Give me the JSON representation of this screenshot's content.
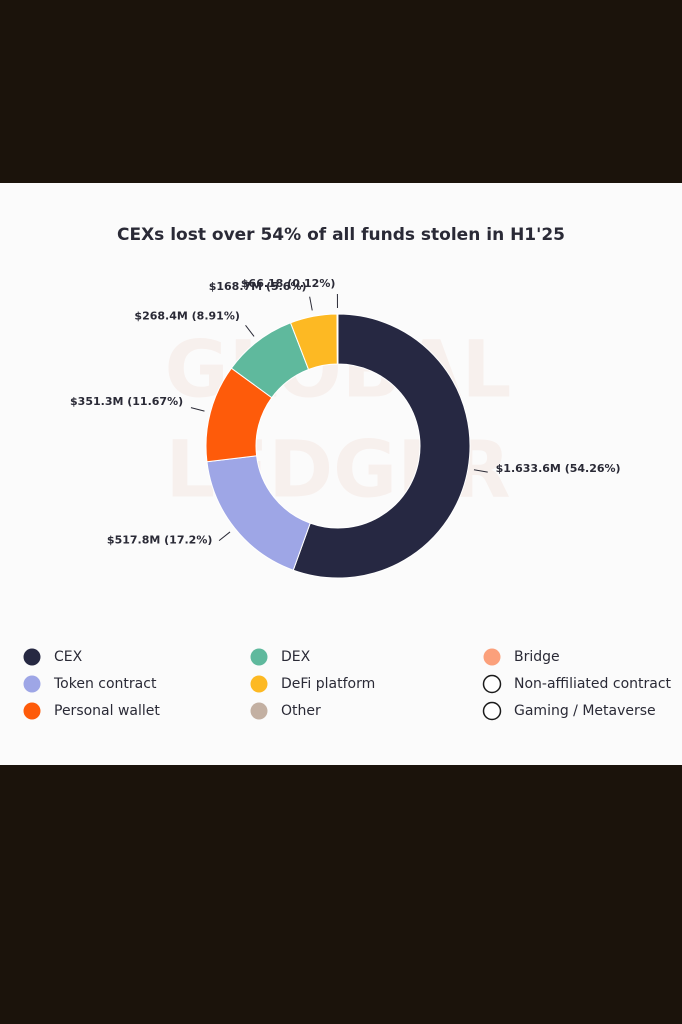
{
  "chart_data": {
    "type": "donut",
    "title": "CEXs lost over 54% of all funds stolen in H1'25",
    "watermark": [
      "GLOBAL",
      "LEDGER"
    ],
    "categories": [
      "CEX",
      "Token contract",
      "Personal wallet",
      "DEX",
      "DeFi platform",
      "Other",
      "Bridge",
      "Non-affiliated contract",
      "Gaming / Metaverse"
    ],
    "values": [
      54.26,
      17.2,
      11.67,
      8.91,
      5.6,
      0.12,
      null,
      null,
      null
    ],
    "value_labels": [
      "$1.633.6M (54.26%)",
      "$517.8M (17.2%)",
      "$351.3M (11.67%)",
      "$268.4M (8.91%)",
      "$168.7M (5.6%)",
      "$66.18 (0.12%)",
      null,
      null,
      null
    ],
    "colors": [
      "#262842",
      "#9ea6e6",
      "#fe5b0a",
      "#5fb99d",
      "#fdb923",
      "#c3b0a2",
      "#fba07b",
      "#ffffff",
      "#ffffff"
    ]
  }
}
